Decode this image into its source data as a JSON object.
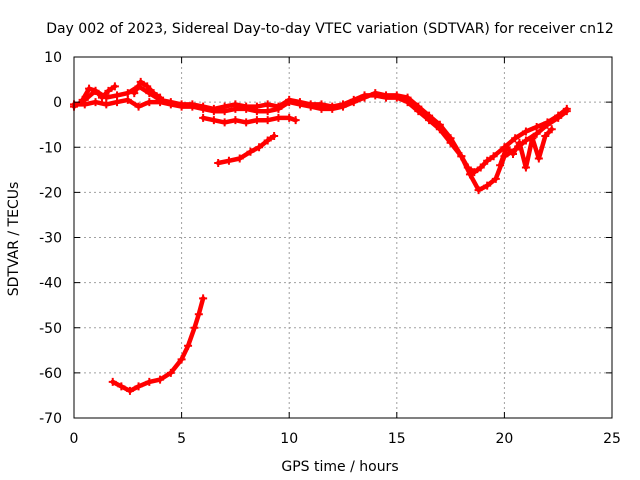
{
  "chart_data": {
    "type": "scatter",
    "title": "Day 002 of 2023, Sidereal Day-to-day VTEC variation (SDTVAR) for receiver cn12",
    "xlabel": "GPS time / hours",
    "ylabel": "SDTVAR / TECUs",
    "xlim": [
      0,
      25
    ],
    "ylim": [
      -70,
      10
    ],
    "xticks": [
      0,
      5,
      10,
      15,
      20,
      25
    ],
    "yticks": [
      -70,
      -60,
      -50,
      -40,
      -30,
      -20,
      -10,
      0,
      10
    ],
    "xtick_labels": [
      "0",
      "5",
      "10",
      "15",
      "20",
      "25"
    ],
    "ytick_labels": [
      "-70",
      "-60",
      "-50",
      "-40",
      "-30",
      "-20",
      "-10",
      "0",
      "10"
    ],
    "grid": true,
    "marker": "plus",
    "color": "#ff0000",
    "series": [
      {
        "name": "track-main-a",
        "x": [
          0.0,
          0.5,
          1.0,
          1.5,
          2.0,
          2.5,
          3.0,
          3.5,
          4.0,
          4.5,
          5.0,
          5.5,
          6.0,
          6.5,
          7.0,
          7.5,
          8.0,
          8.5,
          9.0,
          9.5,
          10.0,
          10.5,
          11.0,
          11.5,
          12.0,
          12.5,
          13.0,
          13.5,
          14.0,
          14.5,
          15.0,
          15.5,
          16.0,
          16.5,
          17.0,
          17.5,
          18.0,
          18.3,
          18.6,
          18.9,
          19.2,
          19.5,
          20.0,
          20.5,
          21.0,
          21.5,
          22.0,
          22.5,
          22.9
        ],
        "y": [
          -1.0,
          0.5,
          2.5,
          1.0,
          1.5,
          2.0,
          3.5,
          2.0,
          0.5,
          0.0,
          -0.5,
          -0.5,
          -1.0,
          -1.5,
          -1.0,
          -0.5,
          -1.0,
          -1.0,
          -0.5,
          -1.0,
          0.5,
          0.0,
          -0.5,
          -0.5,
          -1.0,
          -0.5,
          0.5,
          1.5,
          1.5,
          1.0,
          1.0,
          0.0,
          -2.0,
          -4.0,
          -6.0,
          -9.0,
          -12.0,
          -14.5,
          -15.5,
          -14.5,
          -13.0,
          -12.0,
          -10.0,
          -8.0,
          -6.5,
          -5.5,
          -4.5,
          -3.0,
          -1.5
        ]
      },
      {
        "name": "track-main-b",
        "x": [
          0.0,
          0.5,
          1.0,
          1.5,
          2.0,
          2.5,
          3.0,
          3.5,
          4.0,
          4.5,
          5.0,
          5.5,
          6.0,
          6.5,
          7.0,
          7.5,
          8.0,
          8.5,
          9.0,
          9.5,
          10.0,
          10.5,
          11.0,
          11.5,
          12.0,
          12.5,
          13.0,
          13.5,
          14.0,
          14.5,
          15.0,
          15.5,
          16.0,
          16.5,
          17.0,
          17.5,
          18.0,
          18.4,
          18.8,
          19.2,
          19.6,
          20.0,
          20.5,
          21.0,
          21.5,
          22.0,
          22.5,
          22.9
        ],
        "y": [
          -0.5,
          -0.5,
          0.0,
          -0.5,
          0.0,
          0.5,
          -1.0,
          0.0,
          0.0,
          -0.5,
          -1.0,
          -1.0,
          -1.5,
          -2.0,
          -2.0,
          -1.5,
          -1.5,
          -2.0,
          -2.0,
          -1.5,
          0.0,
          -0.5,
          -1.0,
          -1.5,
          -1.5,
          -1.0,
          0.0,
          1.0,
          2.0,
          1.5,
          1.5,
          1.0,
          -1.0,
          -3.0,
          -5.0,
          -8.0,
          -12.0,
          -16.0,
          -19.5,
          -18.5,
          -17.0,
          -12.0,
          -10.5,
          -8.5,
          -7.0,
          -5.0,
          -3.5,
          -2.0
        ]
      },
      {
        "name": "track-spike-early",
        "x": [
          0.4,
          0.7,
          1.0,
          1.3,
          1.6,
          1.9
        ],
        "y": [
          0.5,
          3.0,
          2.5,
          1.0,
          2.5,
          3.5
        ]
      },
      {
        "name": "track-spike-3h",
        "x": [
          2.8,
          3.1,
          3.4,
          3.7,
          4.0
        ],
        "y": [
          2.0,
          4.5,
          3.5,
          2.0,
          1.0
        ]
      },
      {
        "name": "track-lower-flat",
        "x": [
          6.0,
          6.5,
          7.0,
          7.5,
          8.0,
          8.5,
          9.0,
          9.5,
          10.0,
          10.3
        ],
        "y": [
          -3.5,
          -4.0,
          -4.5,
          -4.0,
          -4.5,
          -4.0,
          -4.0,
          -3.5,
          -3.5,
          -4.0
        ]
      },
      {
        "name": "track-mid-rise",
        "x": [
          6.7,
          7.2,
          7.7,
          8.2,
          8.6,
          9.0,
          9.3
        ],
        "y": [
          -13.5,
          -13.0,
          -12.5,
          -11.0,
          -10.0,
          -8.5,
          -7.5
        ]
      },
      {
        "name": "track-late-spikes",
        "x": [
          19.8,
          20.1,
          20.4,
          20.7,
          21.0,
          21.3,
          21.6,
          21.9,
          22.2
        ],
        "y": [
          -14.0,
          -10.0,
          -11.5,
          -9.0,
          -14.5,
          -8.0,
          -12.5,
          -7.5,
          -6.0
        ]
      },
      {
        "name": "track-bottom",
        "x": [
          1.8,
          2.2,
          2.6,
          3.0,
          3.5,
          4.0,
          4.5,
          5.0,
          5.3,
          5.6,
          5.8,
          6.0
        ],
        "y": [
          -62.0,
          -63.0,
          -64.0,
          -63.0,
          -62.0,
          -61.5,
          -60.0,
          -57.0,
          -54.0,
          -50.0,
          -47.0,
          -43.5
        ]
      }
    ]
  }
}
